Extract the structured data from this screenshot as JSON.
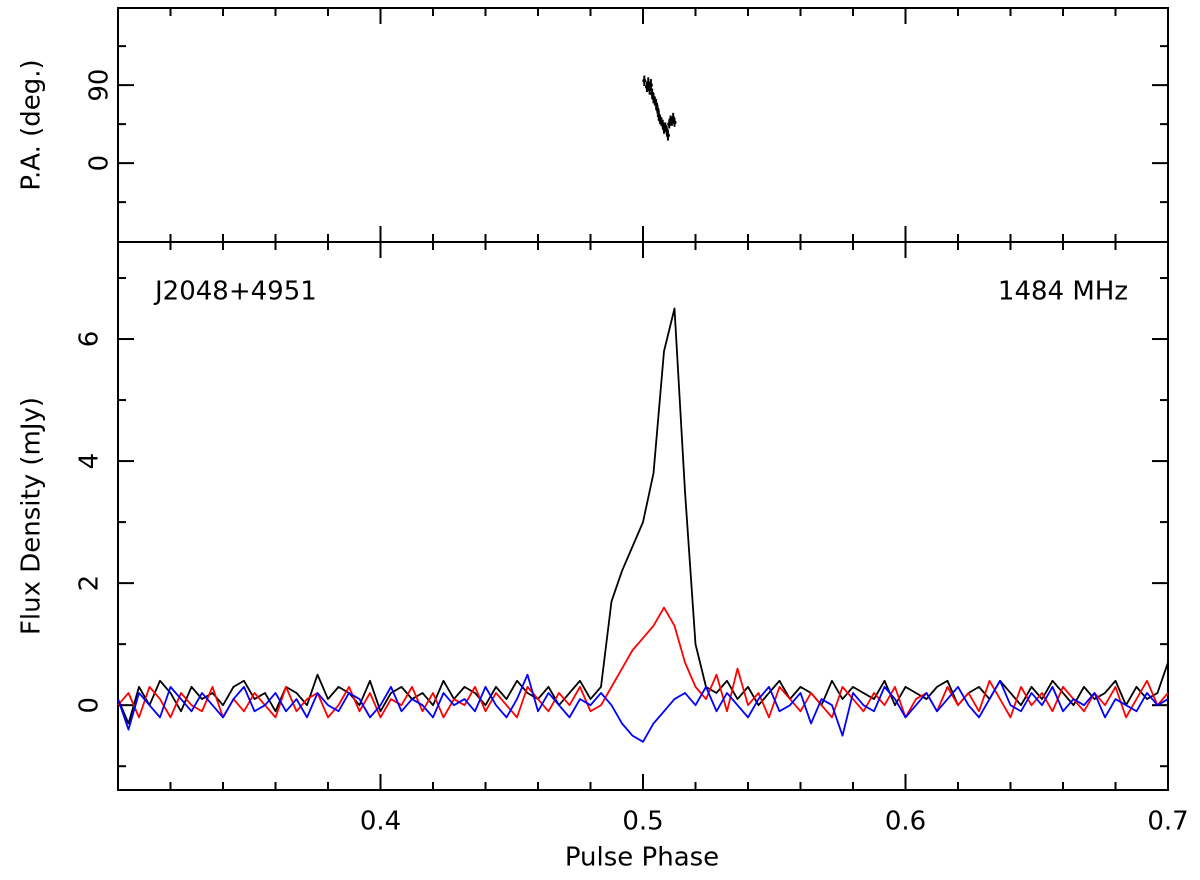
{
  "chart_data": [
    {
      "type": "scatter",
      "ylabel": "P.A. (deg.)",
      "color": "#000000",
      "x": [
        0.5005,
        0.5015,
        0.502,
        0.5025,
        0.503,
        0.5035,
        0.504,
        0.5045,
        0.505,
        0.5055,
        0.506,
        0.5065,
        0.507,
        0.5075,
        0.508,
        0.5085,
        0.509,
        0.5095,
        0.51,
        0.5105,
        0.511,
        0.5115,
        0.512
      ],
      "values": [
        95,
        88,
        92,
        85,
        90,
        80,
        75,
        72,
        68,
        62,
        55,
        50,
        48,
        45,
        40,
        42,
        38,
        32,
        45,
        50,
        48,
        52,
        47
      ],
      "errors": [
        6,
        6,
        7,
        6,
        7,
        6,
        6,
        5,
        6,
        5,
        6,
        5,
        5,
        5,
        6,
        5,
        5,
        6,
        5,
        5,
        5,
        6,
        5
      ],
      "xlim": [
        0.3,
        0.7
      ],
      "xticks": [
        0.4,
        0.5,
        0.6,
        0.7
      ],
      "xticks_minor": [
        0.32,
        0.34,
        0.36,
        0.38,
        0.42,
        0.44,
        0.46,
        0.48,
        0.52,
        0.54,
        0.56,
        0.58,
        0.62,
        0.64,
        0.66,
        0.68
      ],
      "ylim": [
        -91,
        179
      ],
      "yticks": [
        0,
        90
      ],
      "yticks_minor": [
        -45,
        45,
        135
      ]
    },
    {
      "type": "line",
      "xlabel": "Pulse Phase",
      "ylabel": "Flux Density (mJy)",
      "annotations": [
        "J2048+4951",
        "1484 MHz"
      ],
      "x": [
        0.3,
        0.304,
        0.308,
        0.312,
        0.316,
        0.32,
        0.324,
        0.328,
        0.332,
        0.336,
        0.34,
        0.344,
        0.348,
        0.352,
        0.356,
        0.36,
        0.364,
        0.368,
        0.372,
        0.376,
        0.38,
        0.384,
        0.388,
        0.392,
        0.396,
        0.4,
        0.404,
        0.408,
        0.412,
        0.416,
        0.42,
        0.424,
        0.428,
        0.432,
        0.436,
        0.44,
        0.444,
        0.448,
        0.452,
        0.456,
        0.46,
        0.464,
        0.468,
        0.472,
        0.476,
        0.48,
        0.484,
        0.488,
        0.492,
        0.496,
        0.5,
        0.504,
        0.508,
        0.512,
        0.516,
        0.52,
        0.524,
        0.528,
        0.532,
        0.536,
        0.54,
        0.544,
        0.548,
        0.552,
        0.556,
        0.56,
        0.564,
        0.568,
        0.572,
        0.576,
        0.58,
        0.584,
        0.588,
        0.592,
        0.596,
        0.6,
        0.604,
        0.608,
        0.612,
        0.616,
        0.62,
        0.624,
        0.628,
        0.632,
        0.636,
        0.64,
        0.644,
        0.648,
        0.652,
        0.656,
        0.66,
        0.664,
        0.668,
        0.672,
        0.676,
        0.68,
        0.684,
        0.688,
        0.692,
        0.696,
        0.7
      ],
      "series": [
        {
          "color": "#000000",
          "values": [
            0.1,
            -0.3,
            0.3,
            0.0,
            0.4,
            0.2,
            -0.1,
            0.3,
            0.1,
            0.2,
            0.0,
            0.3,
            0.4,
            0.1,
            0.2,
            -0.1,
            0.3,
            0.2,
            0.0,
            0.5,
            0.1,
            0.3,
            0.2,
            0.0,
            0.4,
            -0.1,
            0.2,
            0.3,
            0.1,
            0.2,
            0.0,
            0.4,
            0.1,
            0.3,
            0.2,
            0.0,
            0.3,
            0.1,
            0.4,
            0.2,
            0.1,
            0.3,
            0.0,
            0.2,
            0.4,
            0.1,
            0.3,
            1.7,
            2.2,
            2.6,
            3.0,
            3.8,
            5.8,
            6.5,
            3.5,
            1.0,
            0.3,
            0.2,
            0.4,
            0.1,
            0.3,
            0.0,
            0.2,
            0.4,
            0.1,
            0.3,
            0.2,
            0.0,
            0.4,
            0.1,
            0.3,
            0.2,
            0.1,
            0.4,
            0.0,
            0.3,
            0.2,
            0.1,
            0.3,
            0.4,
            0.0,
            0.2,
            0.3,
            0.1,
            0.4,
            0.2,
            0.0,
            0.3,
            0.1,
            0.4,
            0.2,
            0.0,
            0.3,
            0.1,
            0.2,
            0.4,
            0.0,
            0.3,
            0.1,
            0.2,
            0.7
          ]
        },
        {
          "color": "#ff0000",
          "values": [
            0.0,
            0.2,
            -0.2,
            0.3,
            0.1,
            -0.2,
            0.2,
            0.0,
            -0.1,
            0.3,
            -0.2,
            0.1,
            -0.1,
            0.2,
            0.0,
            -0.2,
            0.3,
            -0.1,
            0.1,
            0.2,
            -0.2,
            0.0,
            0.3,
            -0.1,
            0.2,
            -0.2,
            0.1,
            0.0,
            0.3,
            -0.1,
            0.2,
            -0.2,
            0.1,
            0.0,
            0.3,
            -0.1,
            0.2,
            0.0,
            -0.2,
            0.3,
            0.1,
            -0.1,
            0.2,
            0.0,
            0.3,
            -0.1,
            0.0,
            0.3,
            0.6,
            0.9,
            1.1,
            1.3,
            1.6,
            1.3,
            0.7,
            0.3,
            0.1,
            0.5,
            -0.1,
            0.6,
            0.0,
            0.2,
            -0.2,
            0.3,
            0.1,
            -0.1,
            0.2,
            0.0,
            -0.2,
            0.3,
            0.1,
            -0.1,
            0.2,
            0.0,
            0.3,
            -0.2,
            0.1,
            0.2,
            -0.1,
            0.3,
            0.0,
            0.2,
            -0.1,
            0.4,
            0.1,
            -0.2,
            0.3,
            0.0,
            0.2,
            -0.1,
            0.3,
            0.1,
            -0.1,
            0.2,
            0.0,
            0.3,
            -0.2,
            0.1,
            0.4,
            0.0,
            0.2
          ]
        },
        {
          "color": "#0000ff",
          "values": [
            0.1,
            -0.4,
            0.2,
            0.0,
            -0.2,
            0.3,
            0.1,
            -0.1,
            0.2,
            0.0,
            -0.2,
            0.1,
            0.3,
            -0.1,
            0.0,
            0.2,
            -0.1,
            0.1,
            -0.2,
            0.2,
            0.0,
            -0.1,
            0.2,
            0.1,
            -0.2,
            0.0,
            0.3,
            -0.1,
            0.1,
            0.0,
            -0.2,
            0.2,
            0.0,
            0.1,
            -0.1,
            0.3,
            0.0,
            -0.2,
            0.1,
            0.5,
            -0.1,
            0.2,
            0.0,
            -0.2,
            0.1,
            0.0,
            0.2,
            0.0,
            -0.3,
            -0.5,
            -0.6,
            -0.3,
            -0.1,
            0.1,
            0.2,
            0.0,
            0.3,
            -0.1,
            0.2,
            0.0,
            -0.2,
            0.1,
            0.3,
            -0.1,
            0.0,
            0.2,
            -0.3,
            0.1,
            0.0,
            -0.5,
            0.2,
            0.0,
            -0.1,
            0.3,
            0.1,
            -0.2,
            0.0,
            0.2,
            -0.1,
            0.1,
            0.3,
            0.0,
            -0.2,
            0.1,
            0.4,
            0.0,
            -0.1,
            0.2,
            0.0,
            0.3,
            -0.1,
            0.1,
            0.0,
            0.2,
            -0.2,
            0.1,
            0.0,
            -0.1,
            0.2,
            0.0,
            0.1
          ]
        }
      ],
      "xlim": [
        0.3,
        0.7
      ],
      "xticks": [
        0.4,
        0.5,
        0.6,
        0.7
      ],
      "xticks_minor": [
        0.32,
        0.34,
        0.36,
        0.38,
        0.42,
        0.44,
        0.46,
        0.48,
        0.52,
        0.54,
        0.56,
        0.58,
        0.62,
        0.64,
        0.66,
        0.68
      ],
      "ylim": [
        -1.39,
        7.59
      ],
      "yticks": [
        0,
        2,
        4,
        6
      ],
      "yticks_minor": [
        -1,
        1,
        3,
        5,
        7
      ]
    }
  ]
}
